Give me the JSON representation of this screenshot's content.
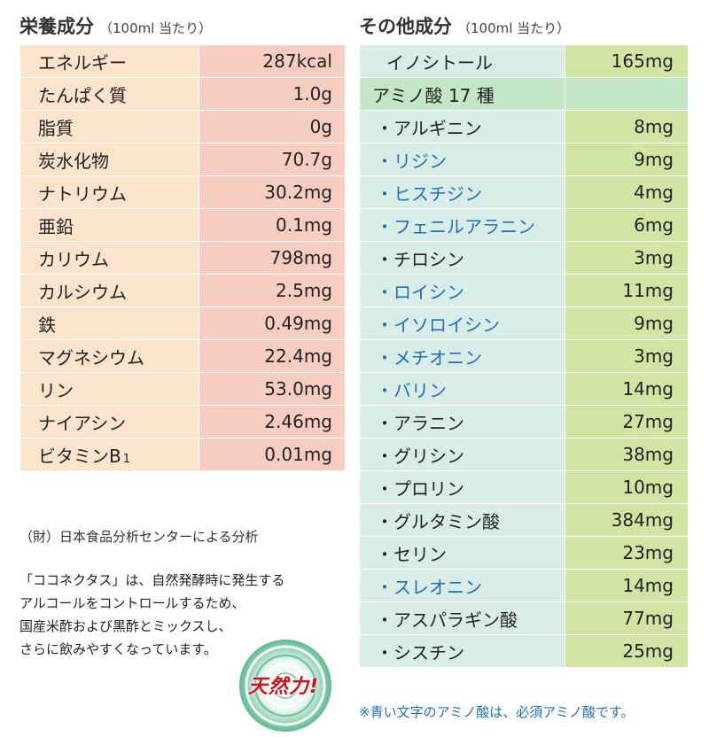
{
  "left": {
    "title": "栄養成分",
    "title_sub": "（100ml 当たり）",
    "rows": [
      {
        "label": "エネルギー",
        "value": "287kcal"
      },
      {
        "label": "たんぱく質",
        "value": "1.0g"
      },
      {
        "label": "脂質",
        "value": "0g"
      },
      {
        "label": "炭水化物",
        "value": "70.7g"
      },
      {
        "label": "ナトリウム",
        "value": "30.2mg"
      },
      {
        "label": "亜鉛",
        "value": "0.1mg"
      },
      {
        "label": "カリウム",
        "value": "798mg"
      },
      {
        "label": "カルシウム",
        "value": "2.5mg"
      },
      {
        "label": "鉄",
        "value": "0.49mg"
      },
      {
        "label": "マグネシウム",
        "value": "22.4mg"
      },
      {
        "label": "リン",
        "value": "53.0mg"
      },
      {
        "label": "ナイアシン",
        "value": "2.46mg"
      },
      {
        "label": "ビタミンB",
        "sub": "1",
        "value": "0.01mg"
      }
    ]
  },
  "right": {
    "title": "その他成分",
    "title_sub": "（100ml 当たり）",
    "rows": [
      {
        "label": "イノシトール",
        "value": "165mg",
        "kind": "first"
      },
      {
        "label": "アミノ酸 17 種",
        "value": "",
        "kind": "group"
      },
      {
        "label": "・アルギニン",
        "value": "8mg"
      },
      {
        "label": "・リジン",
        "value": "9mg",
        "essential": true
      },
      {
        "label": "・ヒスチジン",
        "value": "4mg",
        "essential": true
      },
      {
        "label": "・フェニルアラニン",
        "value": "6mg",
        "essential": true
      },
      {
        "label": "・チロシン",
        "value": "3mg"
      },
      {
        "label": "・ロイシン",
        "value": "11mg",
        "essential": true
      },
      {
        "label": "・イソロイシン",
        "value": "9mg",
        "essential": true
      },
      {
        "label": "・メチオニン",
        "value": "3mg",
        "essential": true
      },
      {
        "label": "・バリン",
        "value": "14mg",
        "essential": true
      },
      {
        "label": "・アラニン",
        "value": "27mg"
      },
      {
        "label": "・グリシン",
        "value": "38mg"
      },
      {
        "label": "・プロリン",
        "value": "10mg"
      },
      {
        "label": "・グルタミン酸",
        "value": "384mg"
      },
      {
        "label": "・セリン",
        "value": "23mg"
      },
      {
        "label": "・スレオニン",
        "value": "14mg",
        "essential": true
      },
      {
        "label": "・アスパラギン酸",
        "value": "77mg"
      },
      {
        "label": "・シスチン",
        "value": "25mg"
      }
    ]
  },
  "source_note": "（財）日本食品分析センターによる分析",
  "description_lines": [
    "「ココネクタス」は、自然発酵時に発生する",
    "アルコールをコントロールするため、",
    "国産米酢および黒酢とミックスし、",
    "さらに飲みやすくなっています。"
  ],
  "badge": {
    "text": "天然力!",
    "icon": "ripple-circle-icon"
  },
  "footnote": "※青い文字のアミノ酸は、必須アミノ酸です。",
  "colors": {
    "left_label_bg": "#fbe3cc",
    "left_value_bg": "#f7cdc1",
    "right_label_bg": "#d8ede8",
    "right_value_bg": "#d2e4a4",
    "group_bg": "#c3e6c6",
    "essential_text": "#1f6fb8",
    "badge_text": "#d0101a"
  }
}
